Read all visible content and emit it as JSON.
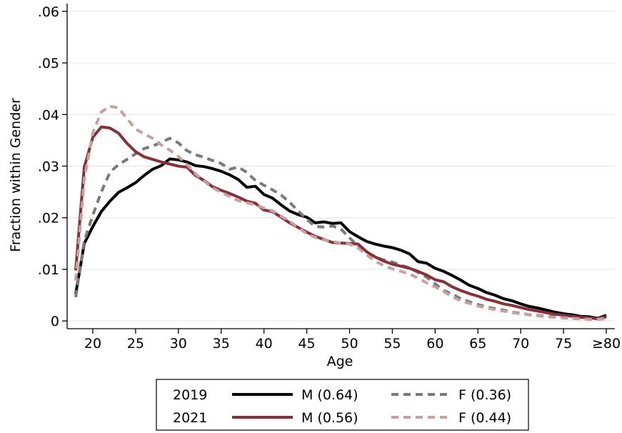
{
  "chart_data": {
    "type": "line",
    "xlabel": "Age",
    "ylabel": "Fraction within Gender",
    "xlim": [
      17,
      81
    ],
    "ylim": [
      -0.0015,
      0.0615
    ],
    "grid": "horizontal",
    "x_ticks": [
      {
        "value": 20,
        "label": "20"
      },
      {
        "value": 25,
        "label": "25"
      },
      {
        "value": 30,
        "label": "30"
      },
      {
        "value": 35,
        "label": "35"
      },
      {
        "value": 40,
        "label": "40"
      },
      {
        "value": 45,
        "label": "45"
      },
      {
        "value": 50,
        "label": "50"
      },
      {
        "value": 55,
        "label": "55"
      },
      {
        "value": 60,
        "label": "60"
      },
      {
        "value": 65,
        "label": "65"
      },
      {
        "value": 70,
        "label": "70"
      },
      {
        "value": 75,
        "label": "75"
      },
      {
        "value": 80,
        "label": "≥80"
      }
    ],
    "y_ticks": [
      {
        "value": 0,
        "label": "0"
      },
      {
        "value": 0.01,
        "label": ".01"
      },
      {
        "value": 0.02,
        "label": ".02"
      },
      {
        "value": 0.03,
        "label": ".03"
      },
      {
        "value": 0.04,
        "label": ".04"
      },
      {
        "value": 0.05,
        "label": ".05"
      },
      {
        "value": 0.06,
        "label": ".06"
      }
    ],
    "legend": {
      "placement": "bottom",
      "rows": [
        {
          "year": "2019",
          "items": [
            "M (0.64)",
            "F (0.36)"
          ]
        },
        {
          "year": "2021",
          "items": [
            "M (0.56)",
            "F (0.44)"
          ]
        }
      ]
    },
    "series": [
      {
        "name": "M (0.64)",
        "year": "2019",
        "color": "#000000",
        "dash": false,
        "points": [
          [
            18,
            0.0052
          ],
          [
            19,
            0.015
          ],
          [
            20,
            0.0183
          ],
          [
            21,
            0.0212
          ],
          [
            22,
            0.0232
          ],
          [
            23,
            0.0249
          ],
          [
            24,
            0.0258
          ],
          [
            25,
            0.0268
          ],
          [
            26,
            0.0282
          ],
          [
            27,
            0.0294
          ],
          [
            28,
            0.0301
          ],
          [
            29,
            0.0314
          ],
          [
            30,
            0.0312
          ],
          [
            31,
            0.0308
          ],
          [
            32,
            0.0301
          ],
          [
            33,
            0.0299
          ],
          [
            34,
            0.0295
          ],
          [
            35,
            0.029
          ],
          [
            36,
            0.0283
          ],
          [
            37,
            0.0274
          ],
          [
            38,
            0.0259
          ],
          [
            39,
            0.0261
          ],
          [
            40,
            0.0245
          ],
          [
            41,
            0.0238
          ],
          [
            42,
            0.0225
          ],
          [
            43,
            0.0213
          ],
          [
            44,
            0.0206
          ],
          [
            45,
            0.0201
          ],
          [
            46,
            0.019
          ],
          [
            47,
            0.0192
          ],
          [
            48,
            0.0189
          ],
          [
            49,
            0.019
          ],
          [
            50,
            0.0173
          ],
          [
            51,
            0.0163
          ],
          [
            52,
            0.0154
          ],
          [
            53,
            0.0149
          ],
          [
            54,
            0.0145
          ],
          [
            55,
            0.0142
          ],
          [
            56,
            0.0137
          ],
          [
            57,
            0.013
          ],
          [
            58,
            0.0115
          ],
          [
            59,
            0.0112
          ],
          [
            60,
            0.0102
          ],
          [
            61,
            0.0096
          ],
          [
            62,
            0.0088
          ],
          [
            63,
            0.0079
          ],
          [
            64,
            0.0069
          ],
          [
            65,
            0.0063
          ],
          [
            66,
            0.0055
          ],
          [
            67,
            0.005
          ],
          [
            68,
            0.0043
          ],
          [
            69,
            0.0039
          ],
          [
            70,
            0.0033
          ],
          [
            71,
            0.0028
          ],
          [
            72,
            0.0025
          ],
          [
            73,
            0.0021
          ],
          [
            74,
            0.0017
          ],
          [
            75,
            0.0014
          ],
          [
            76,
            0.0012
          ],
          [
            77,
            0.0009
          ],
          [
            78,
            0.0008
          ],
          [
            79,
            0.0005
          ],
          [
            80,
            0.0011
          ]
        ]
      },
      {
        "name": "F (0.36)",
        "year": "2019",
        "color": "#7a7a7a",
        "dash": true,
        "points": [
          [
            18,
            0.0046
          ],
          [
            19,
            0.0155
          ],
          [
            20,
            0.0205
          ],
          [
            21,
            0.025
          ],
          [
            22,
            0.0288
          ],
          [
            23,
            0.0303
          ],
          [
            24,
            0.0313
          ],
          [
            25,
            0.0324
          ],
          [
            26,
            0.0334
          ],
          [
            27,
            0.0339
          ],
          [
            28,
            0.0346
          ],
          [
            29,
            0.0354
          ],
          [
            30,
            0.0345
          ],
          [
            31,
            0.033
          ],
          [
            32,
            0.0322
          ],
          [
            33,
            0.0317
          ],
          [
            34,
            0.0311
          ],
          [
            35,
            0.0305
          ],
          [
            36,
            0.0294
          ],
          [
            37,
            0.0298
          ],
          [
            38,
            0.0288
          ],
          [
            39,
            0.0272
          ],
          [
            40,
            0.0263
          ],
          [
            41,
            0.0254
          ],
          [
            42,
            0.0244
          ],
          [
            43,
            0.023
          ],
          [
            44,
            0.0213
          ],
          [
            45,
            0.0197
          ],
          [
            46,
            0.0183
          ],
          [
            47,
            0.0182
          ],
          [
            48,
            0.0184
          ],
          [
            49,
            0.0178
          ],
          [
            50,
            0.0161
          ],
          [
            51,
            0.0145
          ],
          [
            52,
            0.0133
          ],
          [
            53,
            0.0124
          ],
          [
            54,
            0.0118
          ],
          [
            55,
            0.0114
          ],
          [
            56,
            0.0108
          ],
          [
            57,
            0.0103
          ],
          [
            58,
            0.0094
          ],
          [
            59,
            0.0085
          ],
          [
            60,
            0.0072
          ],
          [
            61,
            0.0059
          ],
          [
            62,
            0.0052
          ],
          [
            63,
            0.0043
          ],
          [
            64,
            0.0037
          ],
          [
            65,
            0.0032
          ],
          [
            66,
            0.0027
          ],
          [
            67,
            0.0024
          ],
          [
            68,
            0.0021
          ],
          [
            69,
            0.0017
          ],
          [
            70,
            0.0015
          ],
          [
            71,
            0.0012
          ],
          [
            72,
            0.0011
          ],
          [
            73,
            0.0009
          ],
          [
            74,
            0.0008
          ],
          [
            75,
            0.0006
          ],
          [
            76,
            0.0005
          ],
          [
            77,
            0.0004
          ],
          [
            78,
            0.0004
          ],
          [
            79,
            0.0003
          ],
          [
            80,
            0.0005
          ]
        ]
      },
      {
        "name": "M (0.56)",
        "year": "2021",
        "color": "#8a2f38",
        "dash": false,
        "points": [
          [
            18,
            0.0098
          ],
          [
            19,
            0.0298
          ],
          [
            20,
            0.0356
          ],
          [
            21,
            0.0376
          ],
          [
            22,
            0.0374
          ],
          [
            23,
            0.0364
          ],
          [
            24,
            0.0344
          ],
          [
            25,
            0.0328
          ],
          [
            26,
            0.0318
          ],
          [
            27,
            0.0313
          ],
          [
            28,
            0.0308
          ],
          [
            29,
            0.0304
          ],
          [
            30,
            0.03
          ],
          [
            31,
            0.0298
          ],
          [
            32,
            0.0282
          ],
          [
            33,
            0.0272
          ],
          [
            34,
            0.026
          ],
          [
            35,
            0.0253
          ],
          [
            36,
            0.0247
          ],
          [
            37,
            0.024
          ],
          [
            38,
            0.0232
          ],
          [
            39,
            0.0228
          ],
          [
            40,
            0.0215
          ],
          [
            41,
            0.0212
          ],
          [
            42,
            0.0201
          ],
          [
            43,
            0.019
          ],
          [
            44,
            0.0181
          ],
          [
            45,
            0.0172
          ],
          [
            46,
            0.0164
          ],
          [
            47,
            0.0158
          ],
          [
            48,
            0.0152
          ],
          [
            49,
            0.0151
          ],
          [
            50,
            0.015
          ],
          [
            51,
            0.0149
          ],
          [
            52,
            0.0134
          ],
          [
            53,
            0.0124
          ],
          [
            54,
            0.0116
          ],
          [
            55,
            0.011
          ],
          [
            56,
            0.0106
          ],
          [
            57,
            0.0102
          ],
          [
            58,
            0.0096
          ],
          [
            59,
            0.0089
          ],
          [
            60,
            0.008
          ],
          [
            61,
            0.0076
          ],
          [
            62,
            0.0066
          ],
          [
            63,
            0.0059
          ],
          [
            64,
            0.0053
          ],
          [
            65,
            0.0048
          ],
          [
            66,
            0.0042
          ],
          [
            67,
            0.0038
          ],
          [
            68,
            0.0033
          ],
          [
            69,
            0.003
          ],
          [
            70,
            0.0026
          ],
          [
            71,
            0.0022
          ],
          [
            72,
            0.0019
          ],
          [
            73,
            0.0016
          ],
          [
            74,
            0.0013
          ],
          [
            75,
            0.0011
          ],
          [
            76,
            0.0009
          ],
          [
            77,
            0.0007
          ],
          [
            78,
            0.0006
          ],
          [
            79,
            0.0004
          ],
          [
            80,
            0.0008
          ]
        ]
      },
      {
        "name": "F (0.44)",
        "year": "2021",
        "color": "#c9a0a0",
        "dash": true,
        "points": [
          [
            18,
            0.0078
          ],
          [
            19,
            0.0275
          ],
          [
            20,
            0.0365
          ],
          [
            21,
            0.0405
          ],
          [
            22,
            0.0416
          ],
          [
            23,
            0.0413
          ],
          [
            24,
            0.0392
          ],
          [
            25,
            0.0372
          ],
          [
            26,
            0.0362
          ],
          [
            27,
            0.0354
          ],
          [
            28,
            0.0341
          ],
          [
            29,
            0.0331
          ],
          [
            30,
            0.0319
          ],
          [
            31,
            0.0303
          ],
          [
            32,
            0.0285
          ],
          [
            33,
            0.0271
          ],
          [
            34,
            0.0258
          ],
          [
            35,
            0.0249
          ],
          [
            36,
            0.0241
          ],
          [
            37,
            0.0233
          ],
          [
            38,
            0.0229
          ],
          [
            39,
            0.0225
          ],
          [
            40,
            0.0219
          ],
          [
            41,
            0.0213
          ],
          [
            42,
            0.0203
          ],
          [
            43,
            0.0193
          ],
          [
            44,
            0.0181
          ],
          [
            45,
            0.0169
          ],
          [
            46,
            0.0162
          ],
          [
            47,
            0.0157
          ],
          [
            48,
            0.0154
          ],
          [
            49,
            0.0151
          ],
          [
            50,
            0.0149
          ],
          [
            51,
            0.0141
          ],
          [
            52,
            0.0128
          ],
          [
            53,
            0.0116
          ],
          [
            54,
            0.0107
          ],
          [
            55,
            0.0101
          ],
          [
            56,
            0.0096
          ],
          [
            57,
            0.0091
          ],
          [
            58,
            0.0083
          ],
          [
            59,
            0.0074
          ],
          [
            60,
            0.0066
          ],
          [
            61,
            0.0057
          ],
          [
            62,
            0.0047
          ],
          [
            63,
            0.0039
          ],
          [
            64,
            0.0034
          ],
          [
            65,
            0.0029
          ],
          [
            66,
            0.0025
          ],
          [
            67,
            0.0022
          ],
          [
            68,
            0.0019
          ],
          [
            69,
            0.0016
          ],
          [
            70,
            0.0014
          ],
          [
            71,
            0.0012
          ],
          [
            72,
            0.001
          ],
          [
            73,
            0.0008
          ],
          [
            74,
            0.0007
          ],
          [
            75,
            0.0006
          ],
          [
            76,
            0.0005
          ],
          [
            77,
            0.0004
          ],
          [
            78,
            0.0003
          ],
          [
            79,
            0.0003
          ],
          [
            80,
            0.0006
          ]
        ]
      }
    ]
  }
}
